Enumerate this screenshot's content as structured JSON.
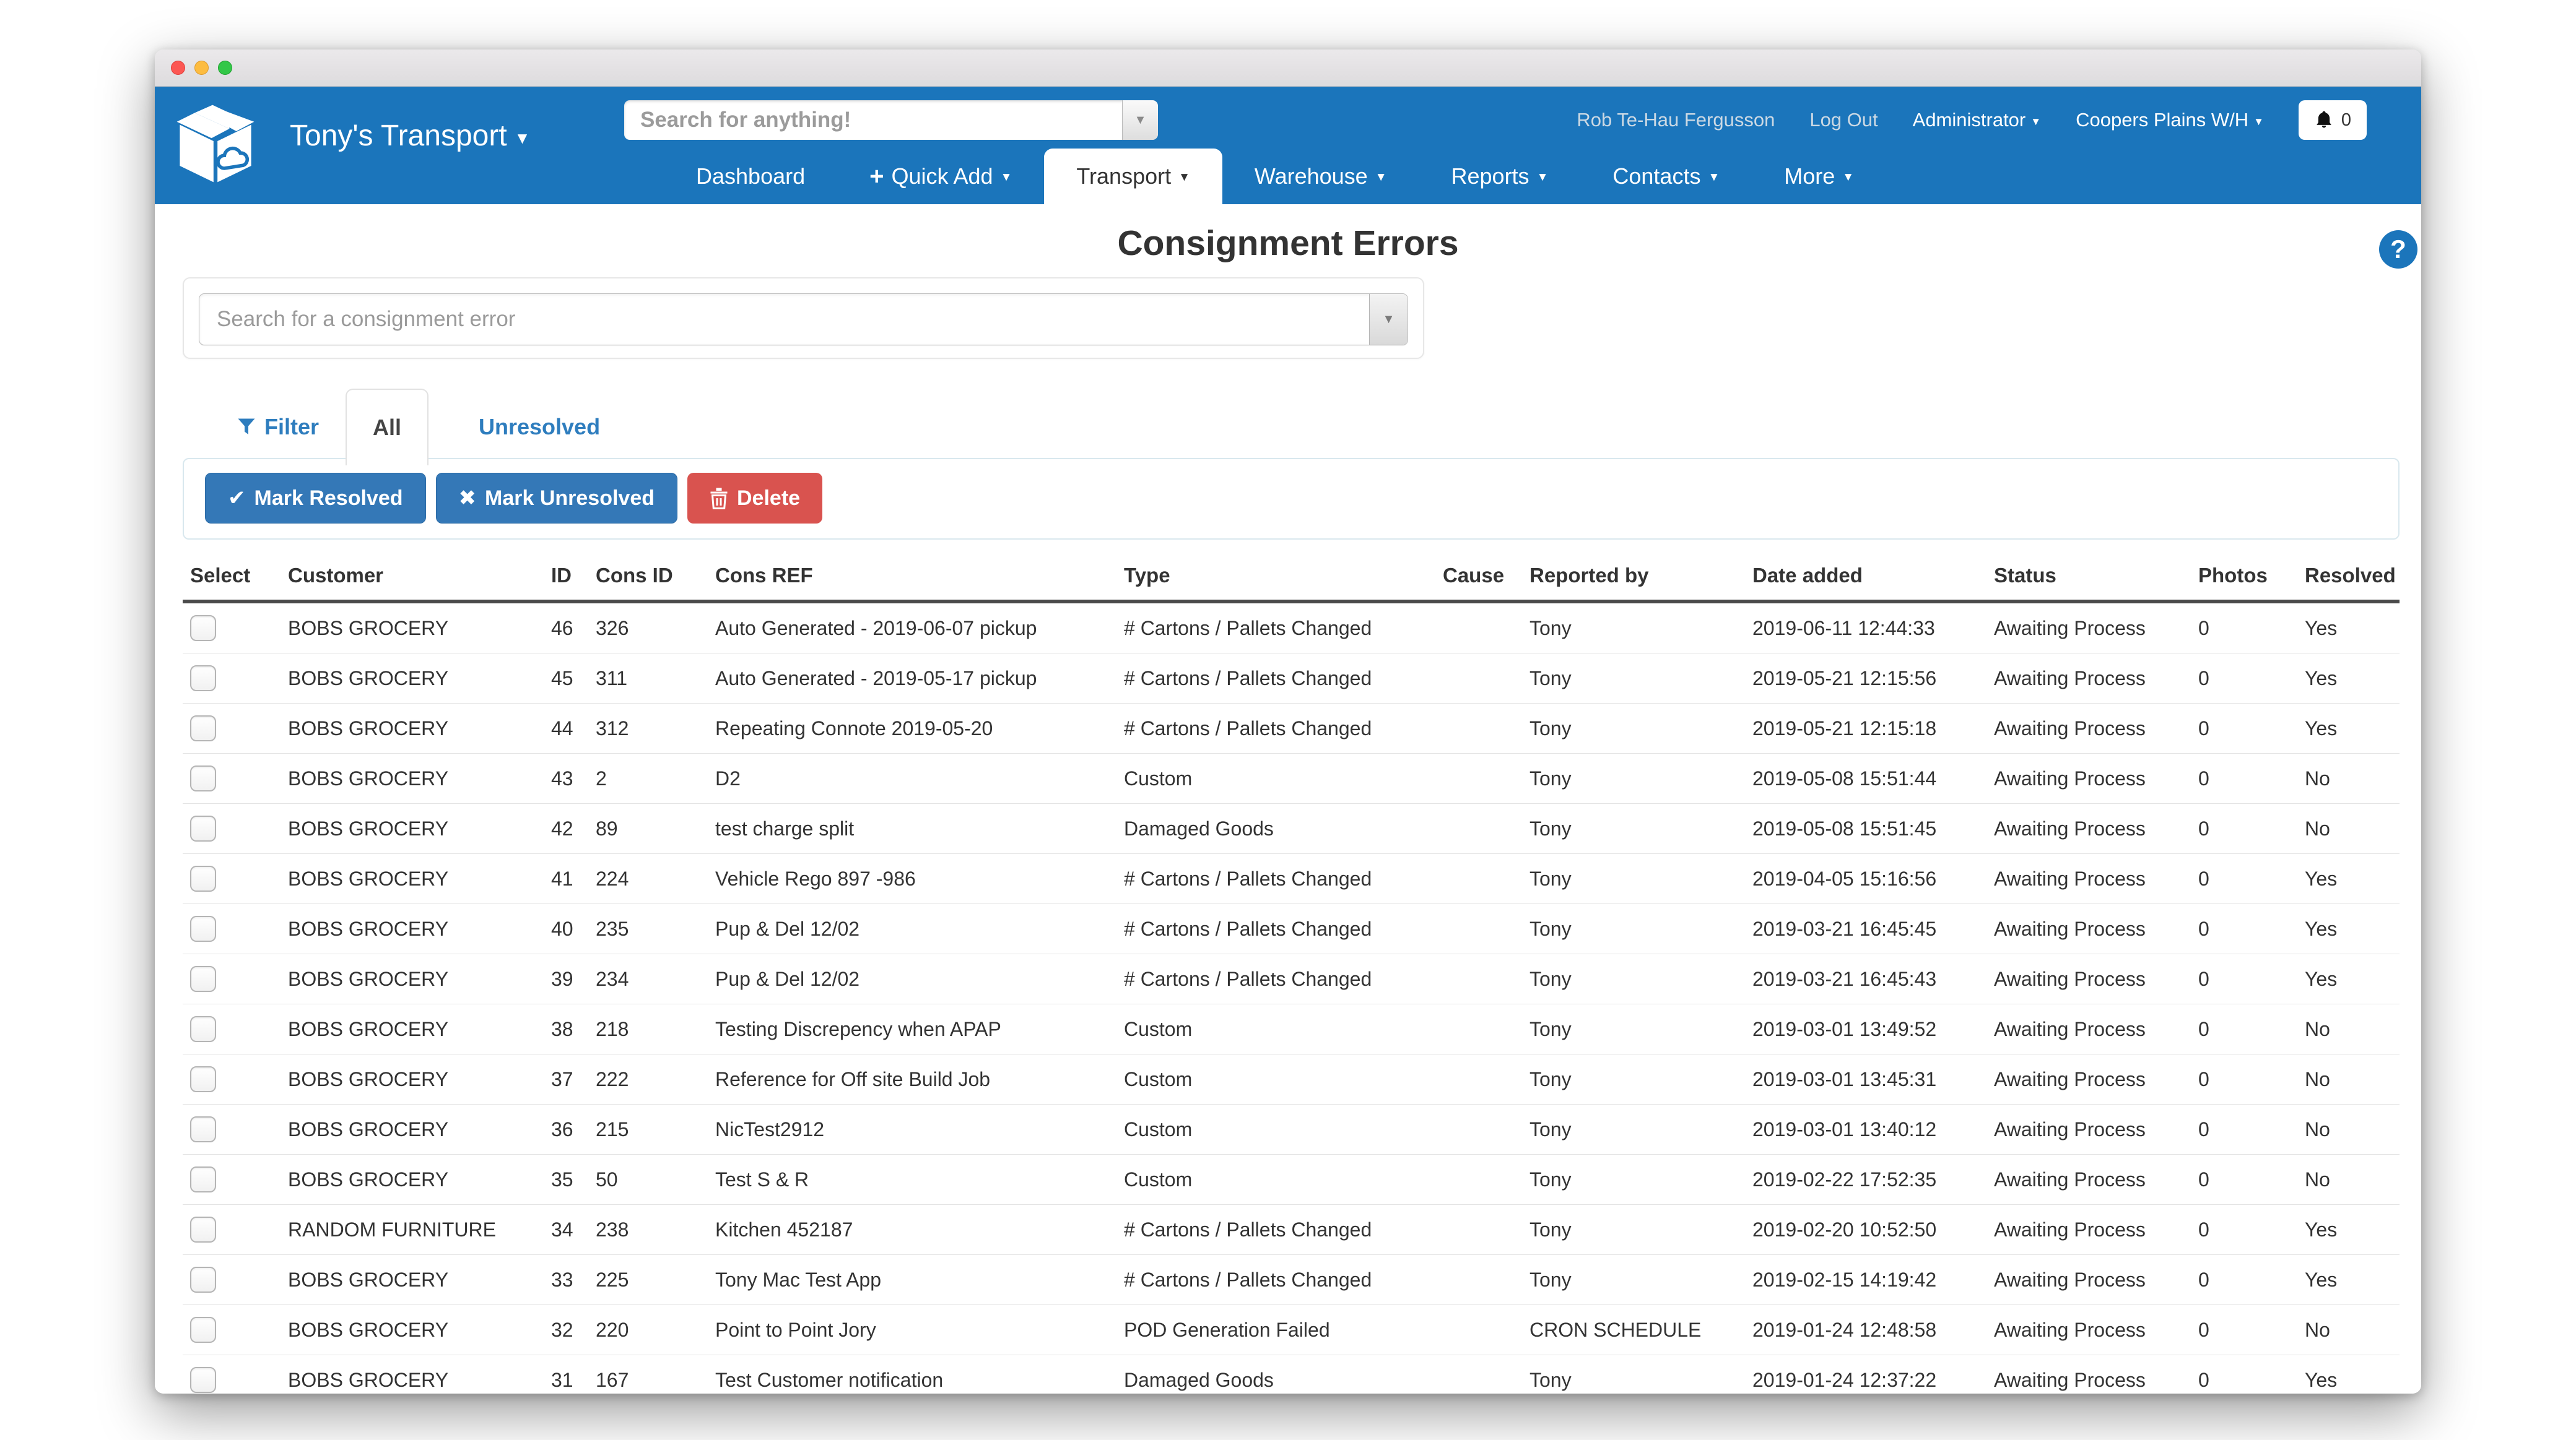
{
  "colors": {
    "brand_blue": "#1b75bb",
    "button_blue": "#3478b7",
    "delete_red": "#d9534f",
    "link_blue": "#2e7dbe"
  },
  "header": {
    "brand": "Tony's Transport",
    "search_placeholder": "Search for anything!",
    "user_name": "Rob Te-Hau Fergusson",
    "log_out_label": "Log Out",
    "role_label": "Administrator",
    "warehouse_label": "Coopers Plains W/H",
    "notification_count": "0",
    "nav": [
      {
        "label": "Dashboard"
      },
      {
        "label": "Quick Add",
        "plus": true,
        "caret": true
      },
      {
        "label": "Transport",
        "caret": true,
        "active": true
      },
      {
        "label": "Warehouse",
        "caret": true
      },
      {
        "label": "Reports",
        "caret": true
      },
      {
        "label": "Contacts",
        "caret": true
      },
      {
        "label": "More",
        "caret": true
      }
    ]
  },
  "page": {
    "title": "Consignment Errors",
    "help_label": "?",
    "search_placeholder": "Search for a consignment error",
    "filter_label": "Filter",
    "tab_all": "All",
    "tab_unresolved": "Unresolved",
    "btn_mark_resolved": "Mark Resolved",
    "btn_mark_unresolved": "Mark Unresolved",
    "btn_delete": "Delete"
  },
  "table": {
    "columns": [
      "Select",
      "Customer",
      "ID",
      "Cons ID",
      "Cons REF",
      "Type",
      "Cause",
      "Reported by",
      "Date added",
      "Status",
      "Photos",
      "Resolved"
    ],
    "rows": [
      {
        "customer": "BOBS GROCERY",
        "id": "46",
        "cons_id": "326",
        "cons_ref": "Auto Generated - 2019-06-07 pickup",
        "type": "# Cartons / Pallets Changed",
        "cause": "",
        "reported_by": "Tony",
        "date_added": "2019-06-11 12:44:33",
        "status": "Awaiting Process",
        "photos": "0",
        "resolved": "Yes"
      },
      {
        "customer": "BOBS GROCERY",
        "id": "45",
        "cons_id": "311",
        "cons_ref": "Auto Generated - 2019-05-17 pickup",
        "type": "# Cartons / Pallets Changed",
        "cause": "",
        "reported_by": "Tony",
        "date_added": "2019-05-21 12:15:56",
        "status": "Awaiting Process",
        "photos": "0",
        "resolved": "Yes"
      },
      {
        "customer": "BOBS GROCERY",
        "id": "44",
        "cons_id": "312",
        "cons_ref": "Repeating Connote 2019-05-20",
        "type": "# Cartons / Pallets Changed",
        "cause": "",
        "reported_by": "Tony",
        "date_added": "2019-05-21 12:15:18",
        "status": "Awaiting Process",
        "photos": "0",
        "resolved": "Yes"
      },
      {
        "customer": "BOBS GROCERY",
        "id": "43",
        "cons_id": "2",
        "cons_ref": "D2",
        "type": "Custom",
        "cause": "",
        "reported_by": "Tony",
        "date_added": "2019-05-08 15:51:44",
        "status": "Awaiting Process",
        "photos": "0",
        "resolved": "No"
      },
      {
        "customer": "BOBS GROCERY",
        "id": "42",
        "cons_id": "89",
        "cons_ref": "test charge split",
        "type": "Damaged Goods",
        "cause": "",
        "reported_by": "Tony",
        "date_added": "2019-05-08 15:51:45",
        "status": "Awaiting Process",
        "photos": "0",
        "resolved": "No"
      },
      {
        "customer": "BOBS GROCERY",
        "id": "41",
        "cons_id": "224",
        "cons_ref": "Vehicle Rego 897 -986",
        "type": "# Cartons / Pallets Changed",
        "cause": "",
        "reported_by": "Tony",
        "date_added": "2019-04-05 15:16:56",
        "status": "Awaiting Process",
        "photos": "0",
        "resolved": "Yes"
      },
      {
        "customer": "BOBS GROCERY",
        "id": "40",
        "cons_id": "235",
        "cons_ref": "Pup & Del 12/02",
        "type": "# Cartons / Pallets Changed",
        "cause": "",
        "reported_by": "Tony",
        "date_added": "2019-03-21 16:45:45",
        "status": "Awaiting Process",
        "photos": "0",
        "resolved": "Yes"
      },
      {
        "customer": "BOBS GROCERY",
        "id": "39",
        "cons_id": "234",
        "cons_ref": "Pup & Del 12/02",
        "type": "# Cartons / Pallets Changed",
        "cause": "",
        "reported_by": "Tony",
        "date_added": "2019-03-21 16:45:43",
        "status": "Awaiting Process",
        "photos": "0",
        "resolved": "Yes"
      },
      {
        "customer": "BOBS GROCERY",
        "id": "38",
        "cons_id": "218",
        "cons_ref": "Testing Discrepency when APAP",
        "type": "Custom",
        "cause": "",
        "reported_by": "Tony",
        "date_added": "2019-03-01 13:49:52",
        "status": "Awaiting Process",
        "photos": "0",
        "resolved": "No"
      },
      {
        "customer": "BOBS GROCERY",
        "id": "37",
        "cons_id": "222",
        "cons_ref": "Reference for Off site Build Job",
        "type": "Custom",
        "cause": "",
        "reported_by": "Tony",
        "date_added": "2019-03-01 13:45:31",
        "status": "Awaiting Process",
        "photos": "0",
        "resolved": "No"
      },
      {
        "customer": "BOBS GROCERY",
        "id": "36",
        "cons_id": "215",
        "cons_ref": "NicTest2912",
        "type": "Custom",
        "cause": "",
        "reported_by": "Tony",
        "date_added": "2019-03-01 13:40:12",
        "status": "Awaiting Process",
        "photos": "0",
        "resolved": "No"
      },
      {
        "customer": "BOBS GROCERY",
        "id": "35",
        "cons_id": "50",
        "cons_ref": "Test S & R",
        "type": "Custom",
        "cause": "",
        "reported_by": "Tony",
        "date_added": "2019-02-22 17:52:35",
        "status": "Awaiting Process",
        "photos": "0",
        "resolved": "No"
      },
      {
        "customer": "RANDOM FURNITURE",
        "id": "34",
        "cons_id": "238",
        "cons_ref": "Kitchen 452187",
        "type": "# Cartons / Pallets Changed",
        "cause": "",
        "reported_by": "Tony",
        "date_added": "2019-02-20 10:52:50",
        "status": "Awaiting Process",
        "photos": "0",
        "resolved": "Yes"
      },
      {
        "customer": "BOBS GROCERY",
        "id": "33",
        "cons_id": "225",
        "cons_ref": "Tony Mac Test App",
        "type": "# Cartons / Pallets Changed",
        "cause": "",
        "reported_by": "Tony",
        "date_added": "2019-02-15 14:19:42",
        "status": "Awaiting Process",
        "photos": "0",
        "resolved": "Yes"
      },
      {
        "customer": "BOBS GROCERY",
        "id": "32",
        "cons_id": "220",
        "cons_ref": "Point to Point Jory",
        "type": "POD Generation Failed",
        "cause": "",
        "reported_by": "CRON SCHEDULE",
        "date_added": "2019-01-24 12:48:58",
        "status": "Awaiting Process",
        "photos": "0",
        "resolved": "No"
      },
      {
        "customer": "BOBS GROCERY",
        "id": "31",
        "cons_id": "167",
        "cons_ref": "Test Customer notification",
        "type": "Damaged Goods",
        "cause": "",
        "reported_by": "Tony",
        "date_added": "2019-01-24 12:37:22",
        "status": "Awaiting Process",
        "photos": "0",
        "resolved": "Yes"
      }
    ]
  }
}
